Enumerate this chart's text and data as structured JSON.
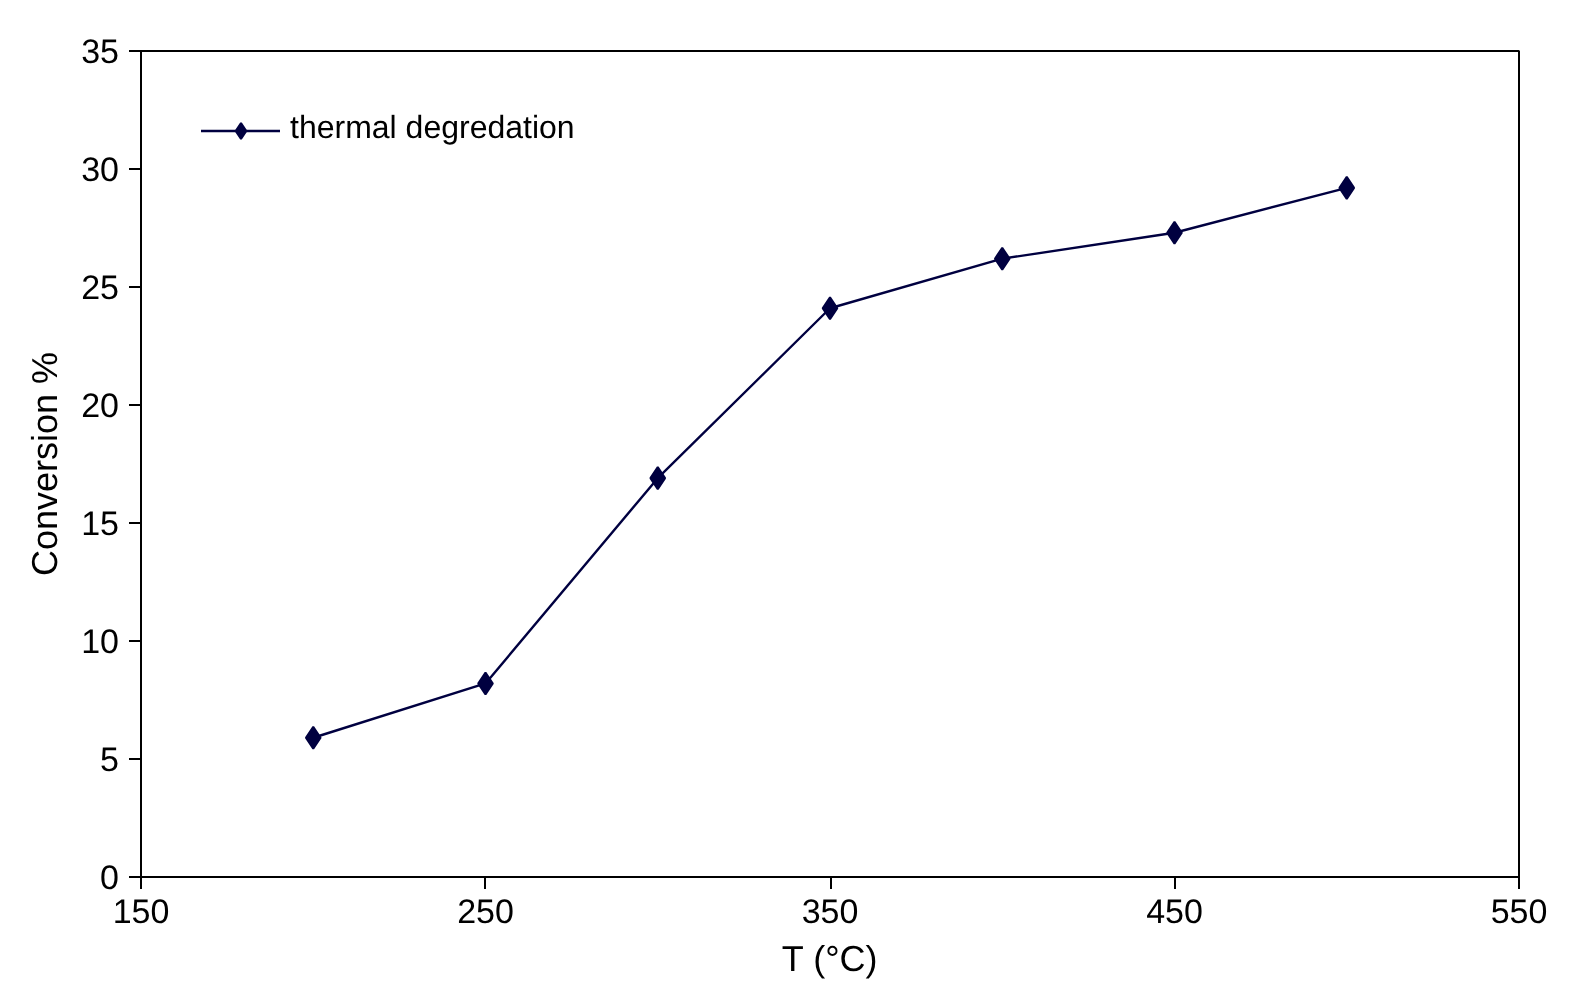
{
  "chart_data": {
    "type": "line",
    "xlabel": "T (°C)",
    "ylabel": "Conversion %",
    "x": [
      200,
      250,
      300,
      350,
      400,
      450,
      500
    ],
    "series": [
      {
        "name": "thermal degredation",
        "color": "#000040",
        "values": [
          5.9,
          8.2,
          16.9,
          24.1,
          26.2,
          27.3,
          29.2
        ]
      }
    ],
    "xlim": [
      150,
      550
    ],
    "xticks": [
      150,
      250,
      350,
      450,
      550
    ],
    "ylim": [
      0,
      35
    ],
    "yticks": [
      0,
      5,
      10,
      15,
      20,
      25,
      30,
      35
    ],
    "grid": false,
    "legend": "top left",
    "marker": "diamond",
    "line_style": "solid"
  }
}
